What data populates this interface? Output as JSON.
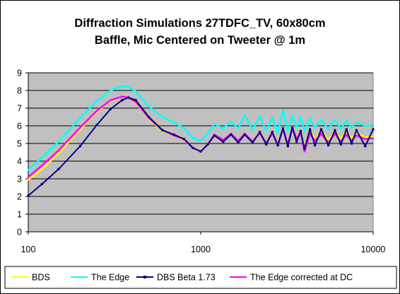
{
  "chart_data": {
    "type": "line",
    "title_lines": [
      "Diffraction Simulations 27TDFC_TV, 60x80cm",
      "Baffle, Mic Centered on Tweeter @ 1m"
    ],
    "xlabel": "",
    "ylabel": "",
    "x_scale": "log",
    "xlim": [
      100,
      10000
    ],
    "ylim": [
      0,
      9
    ],
    "x_ticks": [
      100,
      1000,
      10000
    ],
    "x_tick_labels": [
      "100",
      "1000",
      "10000"
    ],
    "y_ticks": [
      0,
      1,
      2,
      3,
      4,
      5,
      6,
      7,
      8,
      9
    ],
    "y_tick_labels": [
      "0",
      "1",
      "2",
      "3",
      "4",
      "5",
      "6",
      "7",
      "8",
      "9"
    ],
    "grid": "horizontal",
    "plot_background": "#c0c0c0",
    "legend_position": "bottom",
    "series": [
      {
        "name": "BDS",
        "color": "#ffff00",
        "marker": "line",
        "x": [
          100,
          120,
          150,
          200,
          250,
          300,
          350,
          380,
          420,
          500,
          600,
          700,
          800,
          900,
          1000,
          1100,
          1200,
          1350,
          1500,
          1650,
          1800,
          2000,
          2200,
          2400,
          2600,
          2800,
          3000,
          3200,
          3400,
          3600,
          3800,
          4000,
          4300,
          4600,
          5000,
          5500,
          6000,
          6500,
          7000,
          7500,
          8000,
          9000,
          10000
        ],
        "y": [
          2.95,
          3.55,
          4.45,
          5.8,
          6.8,
          7.4,
          7.65,
          7.6,
          7.3,
          6.4,
          5.7,
          5.45,
          5.2,
          4.75,
          4.6,
          4.95,
          5.45,
          5.15,
          5.55,
          5.1,
          5.5,
          5.1,
          5.65,
          5.0,
          5.65,
          4.95,
          5.8,
          4.85,
          5.95,
          5.3,
          5.7,
          4.8,
          5.75,
          5.2,
          5.7,
          5.2,
          5.7,
          5.25,
          5.7,
          5.3,
          5.6,
          5.35,
          5.4
        ]
      },
      {
        "name": "The Edge",
        "color": "#00ffff",
        "marker": "line",
        "x": [
          100,
          120,
          150,
          200,
          250,
          300,
          350,
          380,
          420,
          500,
          600,
          700,
          800,
          900,
          1000,
          1100,
          1200,
          1350,
          1500,
          1650,
          1800,
          2000,
          2200,
          2400,
          2600,
          2800,
          3000,
          3200,
          3400,
          3600,
          3800,
          4000,
          4300,
          4600,
          5000,
          5500,
          6000,
          6500,
          7000,
          7500,
          8000,
          9000,
          10000
        ],
        "y": [
          3.5,
          4.2,
          5.1,
          6.45,
          7.4,
          8.0,
          8.25,
          8.2,
          7.95,
          7.1,
          6.5,
          6.2,
          5.85,
          5.3,
          5.15,
          5.55,
          6.1,
          5.85,
          6.25,
          5.85,
          6.6,
          5.8,
          6.55,
          5.7,
          6.45,
          5.6,
          6.9,
          5.7,
          6.6,
          5.9,
          6.5,
          5.7,
          6.4,
          5.9,
          6.35,
          5.8,
          6.35,
          5.85,
          6.3,
          5.9,
          6.2,
          6.0,
          6.05
        ]
      },
      {
        "name": "DBS Beta 1.73",
        "color": "#000080",
        "marker": "square",
        "x": [
          100,
          120,
          150,
          200,
          250,
          300,
          350,
          380,
          420,
          500,
          600,
          700,
          800,
          900,
          1000,
          1100,
          1200,
          1350,
          1500,
          1650,
          1800,
          2000,
          2200,
          2400,
          2600,
          2800,
          3000,
          3200,
          3400,
          3600,
          3800,
          4000,
          4300,
          4600,
          5000,
          5500,
          6000,
          6500,
          7000,
          7500,
          8000,
          9000,
          10000
        ],
        "y": [
          2.05,
          2.7,
          3.55,
          4.85,
          6.05,
          6.95,
          7.45,
          7.6,
          7.45,
          6.5,
          5.75,
          5.5,
          5.25,
          4.75,
          4.55,
          4.95,
          5.45,
          5.1,
          5.5,
          5.05,
          5.5,
          5.05,
          5.65,
          4.95,
          5.65,
          4.9,
          5.85,
          4.85,
          5.9,
          5.1,
          5.7,
          4.7,
          5.8,
          4.9,
          5.8,
          4.9,
          5.75,
          4.95,
          5.8,
          5.0,
          5.75,
          4.85,
          5.8
        ]
      },
      {
        "name": "The Edge corrected at DC",
        "color": "#ff00ff",
        "marker": "line",
        "x": [
          100,
          120,
          150,
          200,
          250,
          300,
          350,
          380,
          420,
          500,
          600,
          700,
          800,
          900,
          1000,
          1100,
          1200,
          1350,
          1500,
          1650,
          1800,
          2000,
          2200,
          2400,
          2600,
          2800,
          3000,
          3200,
          3400,
          3600,
          3800,
          4000,
          4300,
          4600,
          5000,
          5500,
          6000,
          6500,
          7000,
          7500,
          8000,
          9000,
          10000
        ],
        "y": [
          3.1,
          3.75,
          4.6,
          5.9,
          6.85,
          7.45,
          7.65,
          7.6,
          7.35,
          6.45,
          5.75,
          5.45,
          5.25,
          4.75,
          4.55,
          4.95,
          5.5,
          5.2,
          5.55,
          5.15,
          5.55,
          5.1,
          5.6,
          5.0,
          5.6,
          4.9,
          5.85,
          4.9,
          5.9,
          5.25,
          5.65,
          4.55,
          5.55,
          5.15,
          5.55,
          5.05,
          5.55,
          5.1,
          5.5,
          5.15,
          5.45,
          5.25,
          5.3
        ]
      }
    ]
  }
}
